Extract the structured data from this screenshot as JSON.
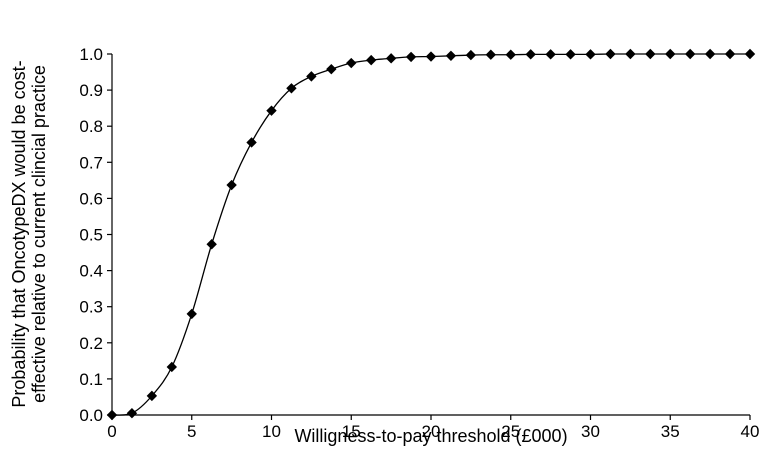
{
  "chart_data": {
    "type": "line",
    "title": "",
    "xlabel": "Willigness-to-pay threshold (£000)",
    "ylabel_lines": [
      "Probability that OncotypeDX would be cost-",
      "effective relative to current clincial practice"
    ],
    "xlim": [
      0,
      40
    ],
    "ylim": [
      0,
      1
    ],
    "x_ticks": [
      "0",
      "5",
      "10",
      "15",
      "20",
      "25",
      "30",
      "35",
      "40"
    ],
    "y_ticks": [
      "0.0",
      "0.1",
      "0.2",
      "0.3",
      "0.4",
      "0.5",
      "0.6",
      "0.7",
      "0.8",
      "0.9",
      "1.0"
    ],
    "grid": false,
    "legend": "none",
    "marker": "diamond",
    "line_color": "#000000",
    "x": [
      0,
      1.25,
      2.5,
      3.75,
      5,
      6.25,
      7.5,
      8.75,
      10,
      11.25,
      12.5,
      13.75,
      15,
      16.25,
      17.5,
      18.75,
      20,
      21.25,
      22.5,
      23.75,
      25,
      26.25,
      27.5,
      28.75,
      30,
      31.25,
      32.5,
      33.75,
      35,
      36.25,
      37.5,
      38.75,
      40
    ],
    "y": [
      0.0,
      0.005,
      0.053,
      0.133,
      0.28,
      0.473,
      0.637,
      0.755,
      0.843,
      0.905,
      0.938,
      0.958,
      0.975,
      0.983,
      0.988,
      0.992,
      0.993,
      0.995,
      0.997,
      0.998,
      0.998,
      0.999,
      0.999,
      0.999,
      0.999,
      1.0,
      1.0,
      1.0,
      1.0,
      1.0,
      1.0,
      1.0,
      1.0
    ]
  }
}
